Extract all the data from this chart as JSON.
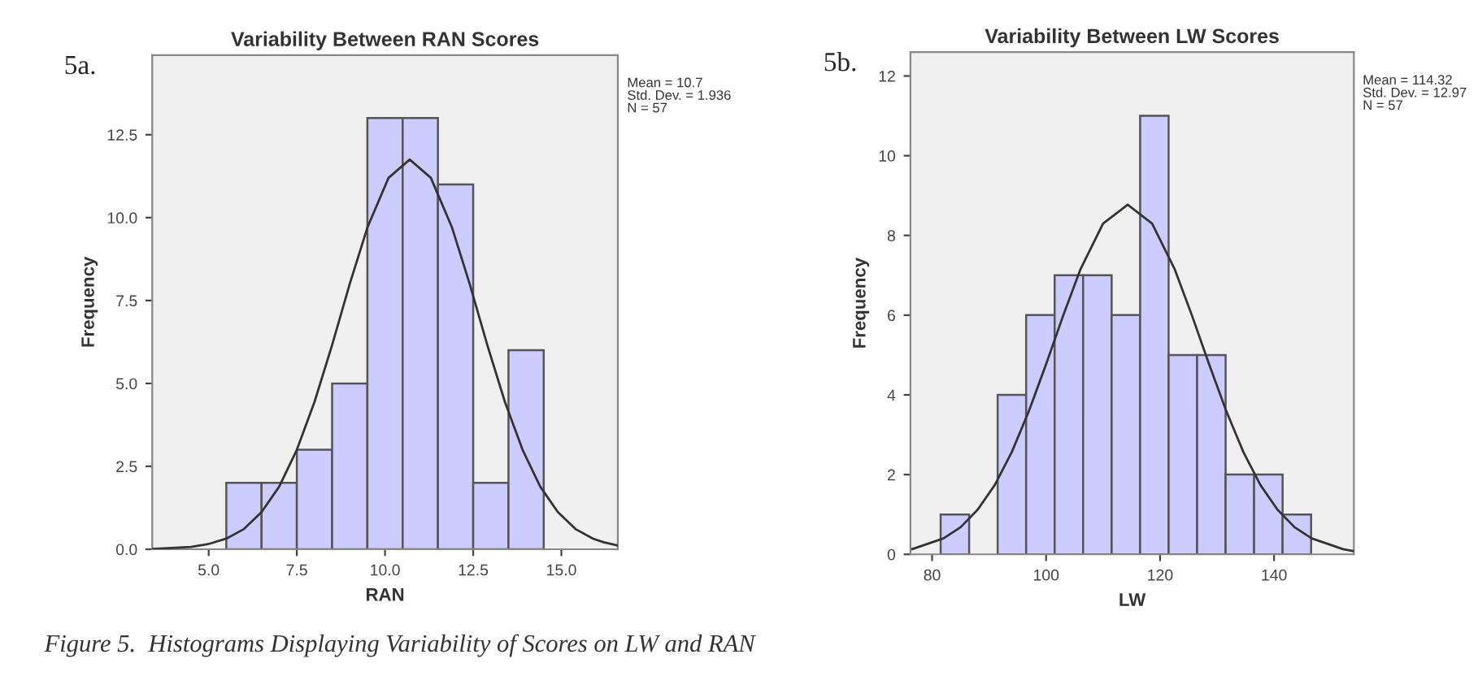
{
  "chart_data": [
    {
      "type": "histogram",
      "title": "Variability Between RAN Scores",
      "xlabel": "RAN",
      "ylabel": "Frequency",
      "bins": [
        5.5,
        6.5,
        7.5,
        8.5,
        9.5,
        10.5,
        11.5,
        12.5,
        13.5,
        14.5
      ],
      "values": [
        2,
        2,
        3,
        5,
        13,
        13,
        11,
        2,
        6
      ],
      "color": "#ccccff",
      "series": [
        {
          "type": "line",
          "color": "#333333",
          "x": [
            3.4,
            4.5,
            5.0,
            5.5,
            6.0,
            6.5,
            7.0,
            7.5,
            8.0,
            8.5,
            9.0,
            9.5,
            10.1,
            10.7,
            11.3,
            11.9,
            12.4,
            12.9,
            13.4,
            13.9,
            14.4,
            14.9,
            15.4,
            15.9,
            16.2,
            16.6
          ],
          "values": [
            0.01,
            0.07,
            0.16,
            0.32,
            0.61,
            1.12,
            1.89,
            3.0,
            4.44,
            6.16,
            8.0,
            9.7,
            11.2,
            11.75,
            11.2,
            9.7,
            8.0,
            6.16,
            4.44,
            3.0,
            1.89,
            1.12,
            0.61,
            0.32,
            0.21,
            0.11
          ]
        }
      ],
      "xlim": [
        3.4,
        16.6
      ],
      "xticks": [
        {
          "value": 5,
          "label": "5.0"
        },
        {
          "value": 7.5,
          "label": "7.5"
        },
        {
          "value": 10,
          "label": "10.0"
        },
        {
          "value": 12.5,
          "label": "12.5"
        },
        {
          "value": 15,
          "label": "15.0"
        }
      ],
      "ylim": [
        0,
        14.9
      ],
      "yticks": [
        {
          "value": 0,
          "label": "0.0"
        },
        {
          "value": 2.5,
          "label": "2.5"
        },
        {
          "value": 5,
          "label": "5.0"
        },
        {
          "value": 7.5,
          "label": "7.5"
        },
        {
          "value": 10,
          "label": "10.0"
        },
        {
          "value": 12.5,
          "label": "12.5"
        }
      ],
      "grid": false,
      "legend": false,
      "annotations": [
        "5a.",
        "Mean = 10.7\nStd. Dev. = 1.936\nN = 57",
        "Figure 5.  Histograms Displaying Variability of Scores on LW and RAN"
      ]
    },
    {
      "type": "histogram",
      "title": "Variability Between LW Scores",
      "xlabel": "LW",
      "ylabel": "Frequency",
      "bins": [
        81.5,
        86.5,
        91.5,
        96.5,
        101.5,
        106.5,
        111.5,
        116.5,
        121.5,
        126.5,
        131.5,
        136.5,
        141.5,
        146.5
      ],
      "values": [
        1,
        0,
        4,
        6,
        7,
        7,
        6,
        11,
        5,
        5,
        2,
        2,
        1
      ],
      "color": "#ccccff",
      "series": [
        {
          "type": "line",
          "color": "#333333",
          "x": [
            76.5,
            82,
            85,
            88,
            91,
            94,
            97,
            100,
            103,
            106,
            110,
            114.32,
            118.6,
            122.6,
            125.6,
            128.6,
            131.6,
            134.6,
            137.6,
            140.6,
            143.6,
            146.6,
            152.1,
            154
          ],
          "values": [
            0.13,
            0.4,
            0.68,
            1.12,
            1.74,
            2.57,
            3.6,
            4.77,
            5.99,
            7.14,
            8.3,
            8.77,
            8.3,
            7.14,
            5.99,
            4.77,
            3.6,
            2.57,
            1.74,
            1.12,
            0.68,
            0.4,
            0.13,
            0.08
          ]
        }
      ],
      "xlim": [
        76.2,
        154
      ],
      "xticks": [
        80,
        100,
        120,
        140
      ],
      "ylim": [
        0,
        12.6
      ],
      "yticks": [
        0,
        2,
        4,
        6,
        8,
        10,
        12
      ],
      "grid": false,
      "legend": false,
      "annotations": [
        "5b.",
        "Mean = 114.32\nStd. Dev. = 12.97\nN = 57"
      ]
    }
  ]
}
